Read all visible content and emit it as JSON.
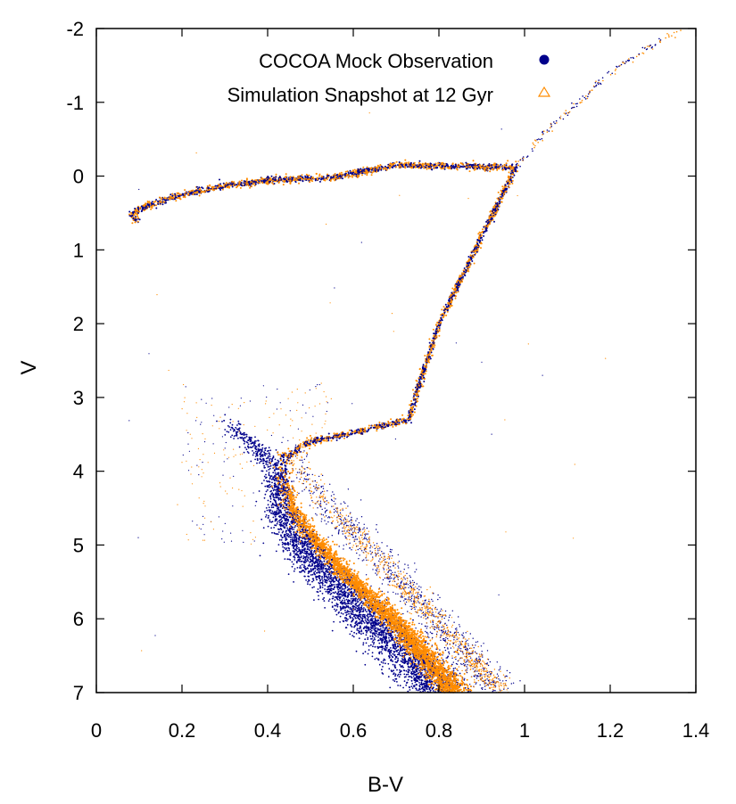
{
  "chart_data": {
    "type": "scatter",
    "title": "",
    "xlabel": "B-V",
    "ylabel": "V",
    "xlim": [
      0,
      1.4
    ],
    "ylim": [
      -2,
      7
    ],
    "y_inverted": true,
    "grid": false,
    "legend_position": "top-right",
    "x_ticks": [
      {
        "value": 0,
        "label": "0"
      },
      {
        "value": 0.2,
        "label": "0.2"
      },
      {
        "value": 0.4,
        "label": "0.4"
      },
      {
        "value": 0.6,
        "label": "0.6"
      },
      {
        "value": 0.8,
        "label": "0.8"
      },
      {
        "value": 1.0,
        "label": "1"
      },
      {
        "value": 1.2,
        "label": "1.2"
      },
      {
        "value": 1.4,
        "label": "1.4"
      }
    ],
    "y_ticks": [
      {
        "value": -2,
        "label": "-2"
      },
      {
        "value": -1,
        "label": "-1"
      },
      {
        "value": 0,
        "label": "0"
      },
      {
        "value": 1,
        "label": "1"
      },
      {
        "value": 2,
        "label": "2"
      },
      {
        "value": 3,
        "label": "3"
      },
      {
        "value": 4,
        "label": "4"
      },
      {
        "value": 5,
        "label": "5"
      },
      {
        "value": 6,
        "label": "6"
      },
      {
        "value": 7,
        "label": "7"
      }
    ],
    "series": [
      {
        "name": "COCOA Mock Observation",
        "color": "#00008b",
        "marker": "filled-circle",
        "ridge": [
          [
            0.3,
            3.3
          ],
          [
            0.38,
            3.72
          ],
          [
            0.41,
            3.9
          ],
          [
            0.42,
            4.2
          ],
          [
            0.43,
            4.6
          ],
          [
            0.47,
            5.0
          ],
          [
            0.53,
            5.4
          ],
          [
            0.6,
            5.8
          ],
          [
            0.67,
            6.2
          ],
          [
            0.73,
            6.55
          ],
          [
            0.8,
            7.0
          ]
        ],
        "binary_ridge": [
          [
            0.45,
            3.7
          ],
          [
            0.5,
            4.2
          ],
          [
            0.58,
            4.7
          ],
          [
            0.66,
            5.2
          ],
          [
            0.74,
            5.7
          ],
          [
            0.82,
            6.2
          ],
          [
            0.9,
            6.7
          ],
          [
            0.95,
            7.0
          ]
        ]
      },
      {
        "name": "Simulation Snapshot at 12 Gyr",
        "color": "#ff8c00",
        "marker": "open-triangle",
        "isochrone": [
          [
            0.1,
            0.6
          ],
          [
            0.09,
            0.58
          ],
          [
            0.08,
            0.53
          ],
          [
            0.09,
            0.48
          ],
          [
            0.12,
            0.4
          ],
          [
            0.2,
            0.25
          ],
          [
            0.3,
            0.13
          ],
          [
            0.4,
            0.06
          ],
          [
            0.55,
            0.02
          ],
          [
            0.7,
            -0.15
          ],
          [
            0.98,
            -0.12
          ],
          [
            0.8,
            2.0
          ],
          [
            0.745,
            3.0
          ],
          [
            0.73,
            3.3
          ],
          [
            0.6,
            3.48
          ],
          [
            0.5,
            3.6
          ],
          [
            0.44,
            3.8
          ],
          [
            0.435,
            4.1
          ],
          [
            0.45,
            4.5
          ],
          [
            0.5,
            4.9
          ],
          [
            0.56,
            5.3
          ],
          [
            0.63,
            5.7
          ],
          [
            0.7,
            6.1
          ],
          [
            0.76,
            6.5
          ],
          [
            0.83,
            7.0
          ]
        ],
        "rgb_tip": [
          [
            0.98,
            -0.12
          ],
          [
            1.05,
            -0.6
          ],
          [
            1.2,
            -1.4
          ],
          [
            1.32,
            -1.85
          ],
          [
            1.38,
            -2.0
          ]
        ]
      }
    ],
    "annotations": []
  }
}
